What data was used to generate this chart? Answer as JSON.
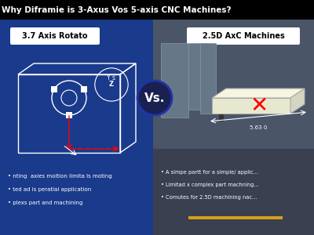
{
  "title": "Why Diframie is 3-Axus Vos 5-axis CNC Machines?",
  "title_color": "#ffffff",
  "title_bg": "#000000",
  "left_bg": "#1a3a8c",
  "right_bg": "#555555",
  "left_label": "3.7 Axis Rotato",
  "right_label": "2.5D AxC Machines",
  "vs_text": "Vs.",
  "vs_bg": "#1a2050",
  "left_bullet1": "nting  axies moltion limita ls moting",
  "left_bullet2": "ted ad is peratial application",
  "left_bullet3": "plexs part and machining",
  "right_bullet1": "A simpe partt for a simple/ applic...",
  "right_bullet2": "Limitad x complex part machning...",
  "right_bullet3": "Comutes for 2.5D machining nac...",
  "left_axis_label": "Y s\nZ",
  "right_dim_label": "5.63 0",
  "box_label_bg": "#ffffff",
  "box_label_color": "#000000",
  "bullet_color": "#ffffff",
  "bullet_size": 8
}
